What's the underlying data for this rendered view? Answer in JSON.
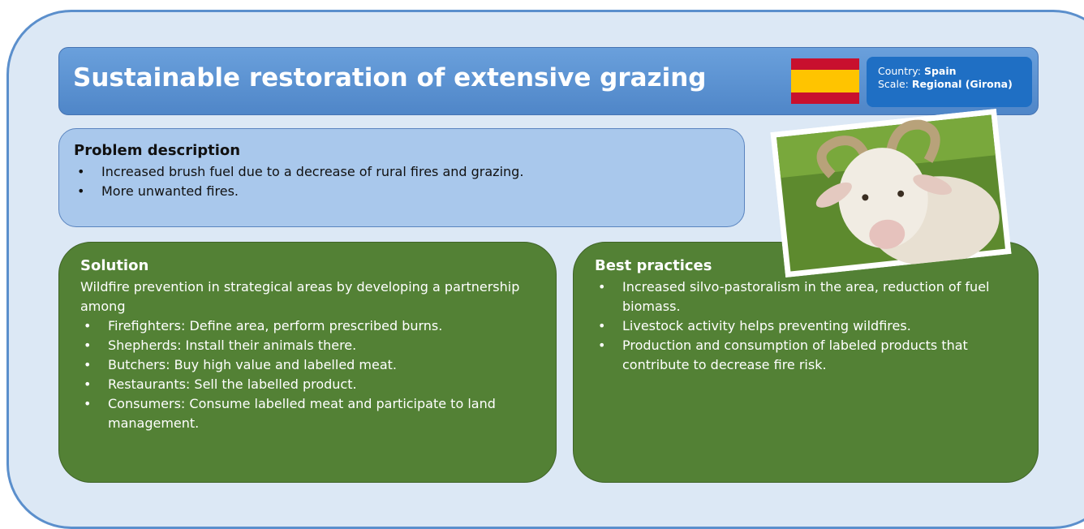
{
  "header": {
    "title": "Sustainable restoration of extensive grazing",
    "country_label": "Country:",
    "country": "Spain",
    "scale_label": "Scale:",
    "scale": "Regional (Girona)"
  },
  "problem": {
    "heading": "Problem description",
    "bullets": [
      "Increased brush fuel due to a decrease of rural fires and grazing.",
      "More unwanted fires."
    ]
  },
  "solution": {
    "heading": "Solution",
    "intro": "Wildfire prevention in strategical areas by developing a partnership among",
    "bullets": [
      "Firefighters: Define area, perform prescribed burns.",
      "Shepherds: Install their animals there.",
      "Butchers: Buy high value and labelled meat.",
      "Restaurants: Sell the labelled product.",
      "Consumers: Consume labelled meat and participate to land management."
    ]
  },
  "best_practices": {
    "heading": "Best practices",
    "bullets": [
      "Increased silvo-pastoralism in the area, reduction of fuel biomass.",
      "Livestock activity helps preventing wildfires.",
      "Production and consumption of labeled products that contribute to decrease fire risk."
    ]
  }
}
